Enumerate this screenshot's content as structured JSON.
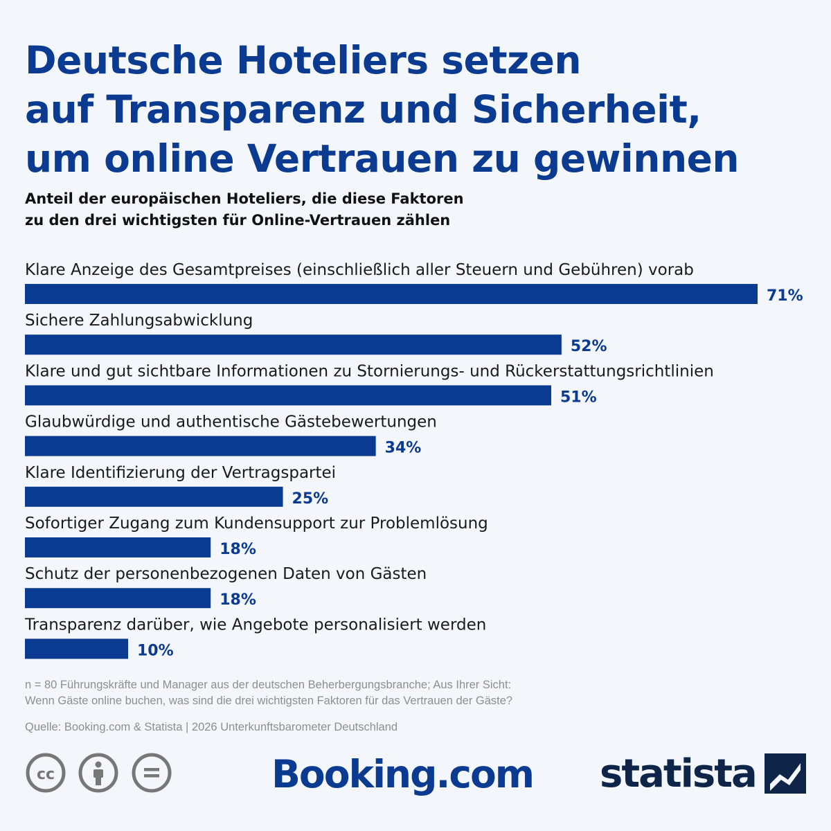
{
  "title": [
    "Deutsche Hoteliers setzen",
    "auf Transparenz und Sicherheit,",
    "um online Vertrauen zu gewinnen"
  ],
  "subtitle": [
    "Anteil der europäischen Hoteliers, die diese Faktoren",
    "zu den drei wichtigsten für Online-Vertrauen zählen"
  ],
  "chart_data": {
    "type": "bar",
    "orientation": "horizontal",
    "categories": [
      "Klare Anzeige des Gesamtpreises (einschließlich aller Steuern und Gebühren) vorab",
      "Sichere Zahlungsabwicklung",
      "Klare und gut sichtbare Informationen zu Stornierungs- und Rückerstattungsrichtlinien",
      "Glaubwürdige und authentische Gästebewertungen",
      "Klare Identifizierung der Vertragspartei",
      "Sofortiger Zugang zum Kundensupport zur Problemlösung",
      "Schutz der personenbezogenen Daten von Gästen",
      "Transparenz darüber, wie Angebote personalisiert werden"
    ],
    "values": [
      71,
      52,
      51,
      34,
      25,
      18,
      18,
      10
    ],
    "value_suffix": "%",
    "bar_color": "#0b3a91"
  },
  "note": [
    "n = 80 Führungskräfte und Manager aus der deutschen Beherbergungsbranche; Aus Ihrer Sicht:",
    "Wenn Gäste online buchen, was sind die drei wichtigsten Faktoren für das Vertrauen der Gäste?"
  ],
  "source": "Quelle: Booking.com & Statista | 2026 Unterkunftsbarometer Deutschland",
  "footer": {
    "license_icons": [
      "creative-commons-icon",
      "attribution-icon",
      "no-derivatives-icon"
    ],
    "brand_booking": "Booking.com",
    "brand_statista": "statista"
  }
}
